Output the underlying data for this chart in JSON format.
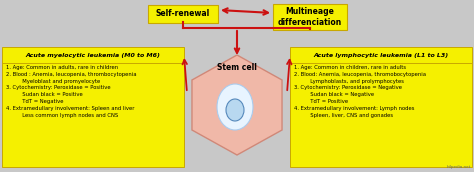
{
  "bg_color": "#c8c8c8",
  "self_renewal_label": "Self-renewal",
  "multineage_label": "Multineage\ndifferenciation",
  "stem_cell_label": "Stem cell",
  "left_box_title": "Acute myelocytic leukemia (M0 to M6)",
  "right_box_title": "Acute lymphocytic leukemia (L1 to L3)",
  "left_box_text": "1. Age: Common in adults, rare in children\n2. Blood : Anemia, leucopenia, thrombocytopenia\n          Myeloblast and promyelocyte\n3. Cytochemistry: Peroxidase = Positive\n          Sudan black = Positive\n          TdT = Negative\n4. Extramedullary involvement: Spleen and liver\n          Less common lymph nodes and CNS",
  "right_box_text": "1. Age: Common in children, rare in adults\n2. Blood: Anemia, leucopenia, thromobocytopenia\n          Lymphoblasts, and prolymphocytes\n3. Cytochemistry: Peroxidase = Negative\n          Sudan black = Negative\n          TdT = Positive\n4. Extramedullary involvement: Lymph nodes\n          Spleen, liver, CNS and gonades",
  "yellow_color": "#f5f000",
  "yellow_edge": "#c8a800",
  "red_color": "#cc1111",
  "hex_face": "#f0b8a8",
  "hex_edge": "#d08878",
  "oval_face": "#b8d8f0",
  "oval_edge": "#5588bb",
  "text_color": "#000000",
  "watermark": "hilpedia.net"
}
